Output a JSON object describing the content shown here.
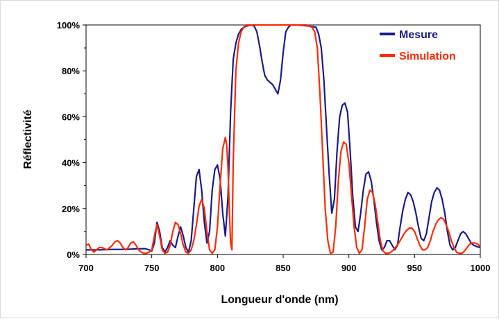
{
  "chart_data": {
    "type": "line",
    "title": "",
    "xlabel": "Longueur d'onde (nm)",
    "ylabel": "Réflectivité",
    "xlim": [
      700,
      1000
    ],
    "ylim": [
      0,
      100
    ],
    "x_ticks": [
      700,
      750,
      800,
      850,
      900,
      950,
      1000
    ],
    "x_tick_labels": [
      "700",
      "750",
      "800",
      "850",
      "900",
      "950",
      "1000"
    ],
    "y_ticks": [
      0,
      20,
      40,
      60,
      80,
      100
    ],
    "y_tick_labels": [
      "0%",
      "20%",
      "40%",
      "60%",
      "80%",
      "100%"
    ],
    "grid": false,
    "legend_position": "top-right",
    "series": [
      {
        "name": "Mesure",
        "color": "#1a1a8c",
        "points": [
          [
            700,
            2
          ],
          [
            710,
            2
          ],
          [
            720,
            2.2
          ],
          [
            730,
            2.2
          ],
          [
            740,
            2.5
          ],
          [
            745,
            2.5
          ],
          [
            748,
            2
          ],
          [
            750,
            1.5
          ],
          [
            752,
            5
          ],
          [
            754,
            14
          ],
          [
            756,
            10
          ],
          [
            758,
            3
          ],
          [
            760,
            1
          ],
          [
            762,
            3
          ],
          [
            764,
            6
          ],
          [
            766,
            4
          ],
          [
            768,
            3
          ],
          [
            770,
            8
          ],
          [
            772,
            12
          ],
          [
            774,
            8
          ],
          [
            776,
            3
          ],
          [
            778,
            1
          ],
          [
            780,
            6
          ],
          [
            782,
            20
          ],
          [
            784,
            34
          ],
          [
            786,
            37
          ],
          [
            788,
            28
          ],
          [
            790,
            14
          ],
          [
            792,
            5
          ],
          [
            794,
            10
          ],
          [
            796,
            28
          ],
          [
            798,
            37
          ],
          [
            800,
            39
          ],
          [
            802,
            33
          ],
          [
            804,
            18
          ],
          [
            806,
            8
          ],
          [
            808,
            25
          ],
          [
            810,
            62
          ],
          [
            812,
            85
          ],
          [
            814,
            92
          ],
          [
            816,
            96
          ],
          [
            818,
            98
          ],
          [
            820,
            99
          ],
          [
            822,
            99.5
          ],
          [
            824,
            99.8
          ],
          [
            826,
            100
          ],
          [
            828,
            99.5
          ],
          [
            830,
            97
          ],
          [
            832,
            91
          ],
          [
            834,
            84
          ],
          [
            836,
            78
          ],
          [
            838,
            76
          ],
          [
            840,
            75
          ],
          [
            842,
            74
          ],
          [
            844,
            72
          ],
          [
            846,
            70
          ],
          [
            848,
            76
          ],
          [
            850,
            88
          ],
          [
            852,
            97
          ],
          [
            854,
            99
          ],
          [
            856,
            100
          ],
          [
            860,
            100
          ],
          [
            865,
            99.8
          ],
          [
            870,
            99.5
          ],
          [
            875,
            99
          ],
          [
            877,
            96
          ],
          [
            879,
            90
          ],
          [
            881,
            76
          ],
          [
            883,
            55
          ],
          [
            885,
            35
          ],
          [
            887,
            18
          ],
          [
            889,
            24
          ],
          [
            891,
            45
          ],
          [
            893,
            60
          ],
          [
            895,
            65
          ],
          [
            897,
            66
          ],
          [
            899,
            62
          ],
          [
            901,
            45
          ],
          [
            903,
            25
          ],
          [
            905,
            12
          ],
          [
            907,
            10
          ],
          [
            909,
            18
          ],
          [
            911,
            28
          ],
          [
            913,
            35
          ],
          [
            915,
            36
          ],
          [
            917,
            32
          ],
          [
            919,
            24
          ],
          [
            921,
            14
          ],
          [
            923,
            6
          ],
          [
            925,
            2
          ],
          [
            927,
            3
          ],
          [
            929,
            6
          ],
          [
            931,
            6
          ],
          [
            933,
            4
          ],
          [
            935,
            2
          ],
          [
            937,
            4
          ],
          [
            939,
            12
          ],
          [
            941,
            19
          ],
          [
            943,
            24
          ],
          [
            945,
            27
          ],
          [
            947,
            26
          ],
          [
            949,
            23
          ],
          [
            951,
            18
          ],
          [
            953,
            12
          ],
          [
            955,
            7
          ],
          [
            957,
            6
          ],
          [
            959,
            9
          ],
          [
            961,
            16
          ],
          [
            963,
            23
          ],
          [
            965,
            27
          ],
          [
            967,
            29
          ],
          [
            969,
            28
          ],
          [
            971,
            24
          ],
          [
            973,
            18
          ],
          [
            975,
            10
          ],
          [
            977,
            4
          ],
          [
            979,
            2
          ],
          [
            981,
            3
          ],
          [
            983,
            6
          ],
          [
            985,
            9
          ],
          [
            987,
            10
          ],
          [
            989,
            9
          ],
          [
            991,
            7
          ],
          [
            993,
            5
          ],
          [
            995,
            4
          ],
          [
            997,
            3.5
          ],
          [
            1000,
            3
          ]
        ]
      },
      {
        "name": "Simulation",
        "color": "#ff2a00",
        "points": [
          [
            700,
            4
          ],
          [
            702,
            4.5
          ],
          [
            704,
            2
          ],
          [
            706,
            1
          ],
          [
            708,
            2
          ],
          [
            710,
            3
          ],
          [
            712,
            3
          ],
          [
            714,
            2.5
          ],
          [
            716,
            2
          ],
          [
            718,
            3
          ],
          [
            720,
            4
          ],
          [
            722,
            5.5
          ],
          [
            724,
            6
          ],
          [
            726,
            5
          ],
          [
            728,
            3
          ],
          [
            730,
            2
          ],
          [
            732,
            3
          ],
          [
            734,
            5
          ],
          [
            736,
            5.5
          ],
          [
            738,
            4
          ],
          [
            740,
            2
          ],
          [
            742,
            1
          ],
          [
            744,
            0.5
          ],
          [
            746,
            0.5
          ],
          [
            748,
            1
          ],
          [
            750,
            2
          ],
          [
            752,
            8
          ],
          [
            754,
            13
          ],
          [
            756,
            8
          ],
          [
            758,
            2
          ],
          [
            760,
            0.5
          ],
          [
            762,
            1
          ],
          [
            764,
            4
          ],
          [
            766,
            10
          ],
          [
            768,
            14
          ],
          [
            770,
            13
          ],
          [
            772,
            9
          ],
          [
            774,
            4
          ],
          [
            776,
            1
          ],
          [
            778,
            0.5
          ],
          [
            780,
            2
          ],
          [
            782,
            6
          ],
          [
            784,
            13
          ],
          [
            786,
            21
          ],
          [
            788,
            24
          ],
          [
            790,
            20
          ],
          [
            792,
            10
          ],
          [
            794,
            2
          ],
          [
            796,
            0.5
          ],
          [
            798,
            2
          ],
          [
            800,
            12
          ],
          [
            802,
            30
          ],
          [
            804,
            46
          ],
          [
            806,
            51
          ],
          [
            807,
            48
          ],
          [
            808,
            38
          ],
          [
            809,
            20
          ],
          [
            810,
            5
          ],
          [
            811,
            2
          ],
          [
            812,
            40
          ],
          [
            814,
            80
          ],
          [
            816,
            92
          ],
          [
            818,
            97
          ],
          [
            820,
            99
          ],
          [
            822,
            100
          ],
          [
            825,
            100
          ],
          [
            830,
            100
          ],
          [
            840,
            100
          ],
          [
            850,
            100
          ],
          [
            860,
            100
          ],
          [
            868,
            100
          ],
          [
            872,
            99
          ],
          [
            874,
            97
          ],
          [
            876,
            90
          ],
          [
            878,
            70
          ],
          [
            880,
            45
          ],
          [
            882,
            20
          ],
          [
            884,
            6
          ],
          [
            886,
            0.5
          ],
          [
            888,
            1
          ],
          [
            890,
            12
          ],
          [
            892,
            32
          ],
          [
            894,
            45
          ],
          [
            896,
            49
          ],
          [
            898,
            48
          ],
          [
            900,
            40
          ],
          [
            902,
            26
          ],
          [
            904,
            12
          ],
          [
            906,
            3
          ],
          [
            908,
            0.5
          ],
          [
            910,
            2
          ],
          [
            912,
            12
          ],
          [
            914,
            24
          ],
          [
            916,
            28
          ],
          [
            918,
            27
          ],
          [
            920,
            22
          ],
          [
            922,
            14
          ],
          [
            924,
            6
          ],
          [
            926,
            1.5
          ],
          [
            928,
            0.5
          ],
          [
            930,
            0.5
          ],
          [
            932,
            1
          ],
          [
            934,
            2
          ],
          [
            936,
            3.5
          ],
          [
            938,
            5
          ],
          [
            940,
            7
          ],
          [
            942,
            9
          ],
          [
            944,
            10.5
          ],
          [
            946,
            11.5
          ],
          [
            948,
            11.5
          ],
          [
            950,
            10
          ],
          [
            952,
            7
          ],
          [
            954,
            4
          ],
          [
            956,
            2
          ],
          [
            958,
            2
          ],
          [
            960,
            3
          ],
          [
            962,
            6
          ],
          [
            964,
            10
          ],
          [
            966,
            13
          ],
          [
            968,
            15
          ],
          [
            970,
            16
          ],
          [
            972,
            15.5
          ],
          [
            974,
            13
          ],
          [
            976,
            10
          ],
          [
            978,
            6
          ],
          [
            980,
            3
          ],
          [
            982,
            1
          ],
          [
            984,
            0.5
          ],
          [
            986,
            0.5
          ],
          [
            988,
            1.5
          ],
          [
            990,
            3
          ],
          [
            992,
            4.5
          ],
          [
            994,
            5
          ],
          [
            996,
            5
          ],
          [
            998,
            4.5
          ],
          [
            1000,
            3.5
          ]
        ]
      }
    ]
  }
}
